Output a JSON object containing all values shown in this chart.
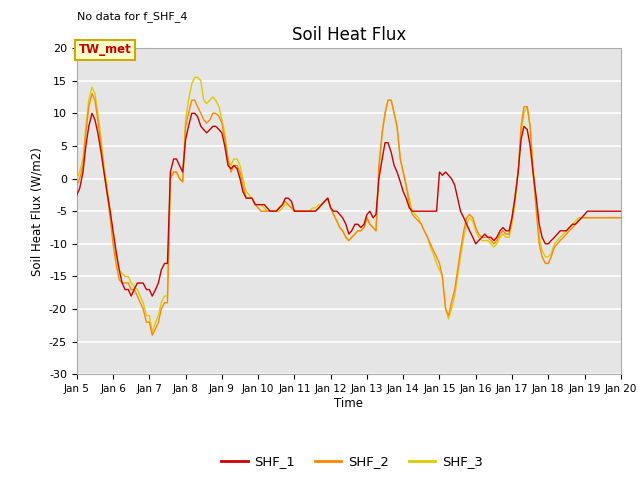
{
  "title": "Soil Heat Flux",
  "top_left_text": "No data for f_SHF_4",
  "ylabel": "Soil Heat Flux (W/m2)",
  "xlabel": "Time",
  "ylim": [
    -30,
    20
  ],
  "legend_label_box": "TW_met",
  "bg_color": "#e5e5e5",
  "series_colors": {
    "SHF_1": "#cc0000",
    "SHF_2": "#ff8800",
    "SHF_3": "#ddcc00"
  },
  "xtick_labels": [
    "Jan 5",
    "Jan 6",
    "Jan 7",
    "Jan 8",
    "Jan 9",
    "Jan 10",
    "Jan 11",
    "Jan 12",
    "Jan 13",
    "Jan 14",
    "Jan 15",
    "Jan 16",
    "Jan 17",
    "Jan 18",
    "Jan 19",
    "Jan 20"
  ],
  "t": [
    5.0,
    5.08,
    5.17,
    5.25,
    5.33,
    5.42,
    5.5,
    5.58,
    5.67,
    5.75,
    5.83,
    5.92,
    6.0,
    6.08,
    6.17,
    6.25,
    6.33,
    6.42,
    6.5,
    6.58,
    6.67,
    6.75,
    6.83,
    6.92,
    7.0,
    7.08,
    7.17,
    7.25,
    7.33,
    7.42,
    7.5,
    7.58,
    7.67,
    7.75,
    7.83,
    7.92,
    8.0,
    8.08,
    8.17,
    8.25,
    8.33,
    8.42,
    8.5,
    8.58,
    8.67,
    8.75,
    8.83,
    8.92,
    9.0,
    9.08,
    9.17,
    9.25,
    9.33,
    9.42,
    9.5,
    9.58,
    9.67,
    9.75,
    9.83,
    9.92,
    10.0,
    10.08,
    10.17,
    10.25,
    10.33,
    10.42,
    10.5,
    10.58,
    10.67,
    10.75,
    10.83,
    10.92,
    11.0,
    11.08,
    11.17,
    11.25,
    11.33,
    11.42,
    11.5,
    11.58,
    11.67,
    11.75,
    11.83,
    11.92,
    12.0,
    12.08,
    12.17,
    12.25,
    12.33,
    12.42,
    12.5,
    12.58,
    12.67,
    12.75,
    12.83,
    12.92,
    13.0,
    13.08,
    13.17,
    13.25,
    13.33,
    13.42,
    13.5,
    13.58,
    13.67,
    13.75,
    13.83,
    13.92,
    14.0,
    14.08,
    14.17,
    14.25,
    14.33,
    14.42,
    14.5,
    14.58,
    14.67,
    14.75,
    14.83,
    14.92,
    15.0,
    15.08,
    15.17,
    15.25,
    15.33,
    15.42,
    15.5,
    15.58,
    15.67,
    15.75,
    15.83,
    15.92,
    16.0,
    16.08,
    16.17,
    16.25,
    16.33,
    16.42,
    16.5,
    16.58,
    16.67,
    16.75,
    16.83,
    16.92,
    17.0,
    17.08,
    17.17,
    17.25,
    17.33,
    17.42,
    17.5,
    17.58,
    17.67,
    17.75,
    17.83,
    17.92,
    18.0,
    18.08,
    18.17,
    18.25,
    18.33,
    18.42,
    18.5,
    18.58,
    18.67,
    18.75,
    18.83,
    18.92,
    19.0,
    19.08,
    19.17,
    19.25,
    19.33,
    19.42,
    19.5,
    19.58,
    19.67,
    19.75,
    19.83,
    19.92,
    20.0
  ],
  "SHF_1": [
    -2.5,
    -1.5,
    1,
    5,
    8,
    10,
    9,
    7,
    4,
    1,
    -2,
    -5,
    -8,
    -11,
    -14,
    -16,
    -17,
    -17,
    -18,
    -17,
    -16,
    -16,
    -16,
    -17,
    -17,
    -18,
    -17,
    -16,
    -14,
    -13,
    -13,
    1,
    3,
    3,
    2,
    1,
    6,
    8,
    10,
    10,
    9.5,
    8,
    7.5,
    7,
    7.5,
    8,
    8,
    7.5,
    7,
    5,
    2,
    1.5,
    2,
    1.5,
    0,
    -2,
    -3,
    -3,
    -3,
    -4,
    -4,
    -4,
    -4,
    -4.5,
    -5,
    -5,
    -5,
    -4.5,
    -4,
    -3,
    -3,
    -3.5,
    -5,
    -5,
    -5,
    -5,
    -5,
    -5,
    -5,
    -5,
    -4.5,
    -4,
    -3.5,
    -3,
    -4.5,
    -5,
    -5,
    -5.5,
    -6,
    -7,
    -8.5,
    -8,
    -7,
    -7,
    -7.5,
    -7,
    -5.5,
    -5,
    -6,
    -5.5,
    0,
    3,
    5.5,
    5.5,
    4,
    2,
    1,
    -0.5,
    -2,
    -3,
    -4.5,
    -5,
    -5,
    -5,
    -5,
    -5,
    -5,
    -5,
    -5,
    -5,
    1,
    0.5,
    1,
    0.5,
    0,
    -1,
    -3,
    -5,
    -6,
    -7,
    -8,
    -9,
    -10,
    -9.5,
    -9,
    -8.5,
    -9,
    -9,
    -9.5,
    -9,
    -8,
    -7.5,
    -8,
    -8,
    -6,
    -3,
    1,
    6,
    8,
    7.5,
    5,
    1,
    -3,
    -7,
    -9,
    -10,
    -10,
    -9.5,
    -9,
    -8.5,
    -8,
    -8,
    -8,
    -7.5,
    -7,
    -7,
    -6.5,
    -6,
    -5.5,
    -5,
    -5,
    -5,
    -5,
    -5,
    -5,
    -5,
    -5,
    -5,
    -5,
    -5,
    -5
  ],
  "SHF_2": [
    -1,
    0,
    2,
    7,
    11,
    13,
    12,
    9,
    5,
    1,
    -2,
    -6,
    -10,
    -13,
    -15.5,
    -16,
    -16,
    -16,
    -17,
    -17,
    -18,
    -19,
    -20,
    -22,
    -22,
    -24,
    -23,
    -22,
    -20,
    -19,
    -19,
    0,
    1,
    1,
    0,
    -0.5,
    8,
    10,
    12,
    12,
    11,
    10,
    9,
    8.5,
    9,
    10,
    10,
    9.5,
    8.5,
    6,
    3,
    1,
    2,
    2,
    1,
    -1,
    -3,
    -3,
    -3,
    -4,
    -4.5,
    -5,
    -5,
    -5,
    -5,
    -5,
    -5,
    -4.5,
    -4,
    -3.5,
    -4,
    -4.5,
    -5,
    -5,
    -5,
    -5,
    -5,
    -5,
    -5,
    -5,
    -4.5,
    -4,
    -3.5,
    -3,
    -4.5,
    -5.5,
    -6.5,
    -7.5,
    -8,
    -9,
    -9.5,
    -9,
    -8.5,
    -8,
    -8,
    -7.5,
    -6,
    -7,
    -7.5,
    -8,
    2,
    7,
    10,
    12,
    12,
    10,
    8,
    3,
    1,
    -1,
    -4,
    -5.5,
    -6,
    -6.5,
    -7,
    -8,
    -9,
    -10,
    -11,
    -12,
    -13,
    -15,
    -20,
    -21,
    -19,
    -17,
    -14,
    -11,
    -8,
    -6,
    -5.5,
    -6,
    -7.5,
    -8.5,
    -9,
    -9,
    -9,
    -9.5,
    -10,
    -9.5,
    -8.5,
    -8,
    -8.5,
    -8.5,
    -6,
    -3,
    1,
    8,
    11,
    11,
    8,
    1,
    -5,
    -10,
    -12,
    -13,
    -13,
    -12,
    -10.5,
    -10,
    -9.5,
    -9,
    -8.5,
    -8,
    -7.5,
    -7,
    -6.5,
    -6,
    -6,
    -6,
    -6,
    -6,
    -6,
    -6,
    -6,
    -6,
    -6,
    -6,
    -6,
    -6,
    -6
  ],
  "SHF_3": [
    0,
    1,
    3,
    8,
    12,
    14,
    13,
    10,
    6,
    2,
    -1,
    -5,
    -9,
    -12,
    -14,
    -14.5,
    -15,
    -15,
    -16,
    -16.5,
    -17,
    -18,
    -19,
    -21,
    -21,
    -23.5,
    -22,
    -21,
    -19,
    -18,
    -18,
    0,
    1,
    1,
    0,
    -0.5,
    9,
    12,
    14.5,
    15.5,
    15.5,
    15,
    12,
    11.5,
    12,
    12.5,
    12,
    11,
    9,
    7,
    3,
    2,
    3,
    3,
    2,
    0,
    -2,
    -2.5,
    -3,
    -4,
    -4,
    -4,
    -4.5,
    -5,
    -5,
    -5,
    -5,
    -5,
    -4.5,
    -4,
    -4,
    -4.5,
    -5,
    -5,
    -5,
    -5,
    -5,
    -5,
    -4.5,
    -4.5,
    -4,
    -4,
    -3.5,
    -3,
    -4.5,
    -5.5,
    -6.5,
    -7.5,
    -8,
    -9,
    -9.5,
    -9,
    -8.5,
    -8,
    -8,
    -7.5,
    -6,
    -7,
    -7.5,
    -8,
    1,
    7,
    10,
    12,
    12,
    10,
    8,
    3,
    1,
    -1,
    -3,
    -5,
    -5.5,
    -6,
    -7,
    -8,
    -9,
    -10.5,
    -11.5,
    -13,
    -14,
    -15,
    -20,
    -21.5,
    -20,
    -18,
    -15,
    -12,
    -9,
    -7,
    -6,
    -6.5,
    -8,
    -9,
    -9.5,
    -9.5,
    -9.5,
    -10,
    -10.5,
    -10,
    -9,
    -8.5,
    -9,
    -9,
    -7,
    -4,
    1,
    7,
    10,
    11,
    8,
    2,
    -4,
    -9,
    -11,
    -12,
    -12,
    -11.5,
    -10,
    -9.5,
    -9,
    -8.5,
    -8,
    -7.5,
    -7,
    -6.5,
    -6,
    -6,
    -6,
    -6,
    -6,
    -6,
    -6,
    -6,
    -6,
    -6,
    -6,
    -6,
    -6,
    -6,
    -6
  ]
}
